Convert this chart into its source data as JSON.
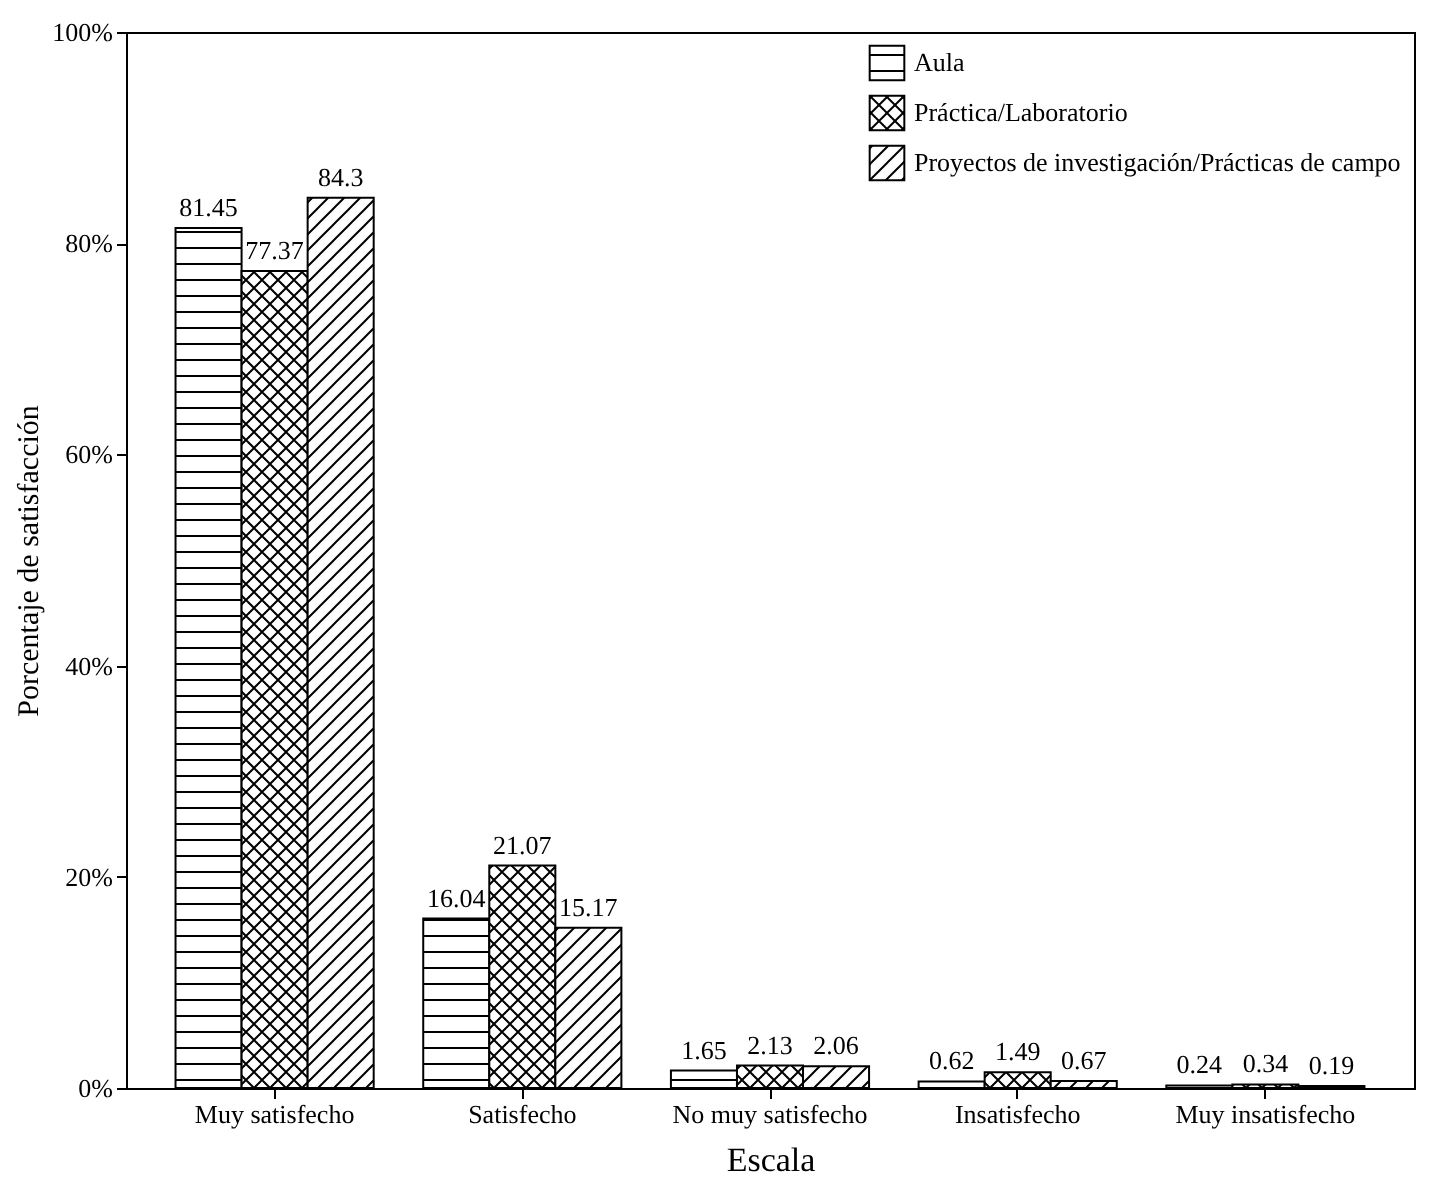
{
  "chart_data": {
    "type": "bar",
    "xlabel": "Escala",
    "ylabel": "Porcentaje de satisfacción",
    "categories": [
      "Muy satisfecho",
      "Satisfecho",
      "No muy satisfecho",
      "Insatisfecho",
      "Muy insatisfecho"
    ],
    "series": [
      {
        "name": "Aula",
        "color": "#000000",
        "values": [
          81.45,
          16.04,
          1.65,
          0.62,
          0.24
        ]
      },
      {
        "name": "Práctica/Laboratorio",
        "color": "#000000",
        "values": [
          77.37,
          21.07,
          2.13,
          1.49,
          0.34
        ]
      },
      {
        "name": "Proyectos de investigación/Prácticas de campo",
        "color": "#000000",
        "values": [
          84.3,
          15.17,
          2.06,
          0.67,
          0.19
        ]
      }
    ],
    "ylim": [
      0,
      100
    ],
    "yticks": [
      {
        "value": 0,
        "label": "0%"
      },
      {
        "value": 20,
        "label": "20%"
      },
      {
        "value": 40,
        "label": "40%"
      },
      {
        "value": 60,
        "label": "60%"
      },
      {
        "value": 80,
        "label": "80%"
      },
      {
        "value": 100,
        "label": "100%"
      }
    ],
    "data_labels": true,
    "grid": false,
    "legend": "top right"
  }
}
